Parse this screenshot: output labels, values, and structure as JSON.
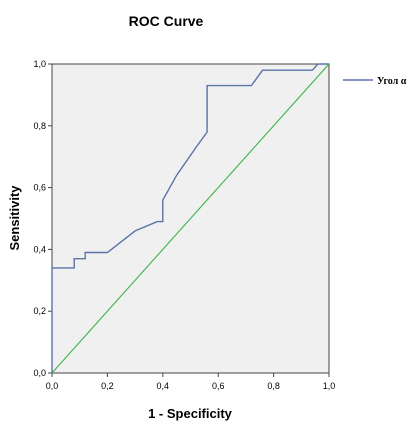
{
  "chart_data": {
    "type": "line",
    "title": "ROC Curve",
    "xlabel": "1 - Specificity",
    "ylabel": "Sensitivity",
    "xlim": [
      0,
      1
    ],
    "ylim": [
      0,
      1
    ],
    "x_ticks": [
      "0,0",
      "0,2",
      "0,4",
      "0,6",
      "0,8",
      "1,0"
    ],
    "y_ticks": [
      "0,0",
      "0,2",
      "0,4",
      "0,6",
      "0,8",
      "1,0"
    ],
    "grid": false,
    "legend_position": "right",
    "background_color": "#f0f0f0",
    "series": [
      {
        "name": "Угол α",
        "color": "#5b73a8",
        "x": [
          0,
          0,
          0.08,
          0.08,
          0.12,
          0.12,
          0.2,
          0.3,
          0.38,
          0.4,
          0.4,
          0.45,
          0.52,
          0.56,
          0.56,
          0.72,
          0.76,
          0.82,
          0.94,
          0.96,
          1.0
        ],
        "y": [
          0,
          0.34,
          0.34,
          0.37,
          0.37,
          0.39,
          0.39,
          0.46,
          0.49,
          0.49,
          0.56,
          0.64,
          0.73,
          0.78,
          0.93,
          0.93,
          0.98,
          0.98,
          0.98,
          1.0,
          1.0
        ]
      },
      {
        "name": "",
        "color": "#3cb34a",
        "x": [
          0,
          1
        ],
        "y": [
          0,
          1
        ]
      }
    ]
  }
}
